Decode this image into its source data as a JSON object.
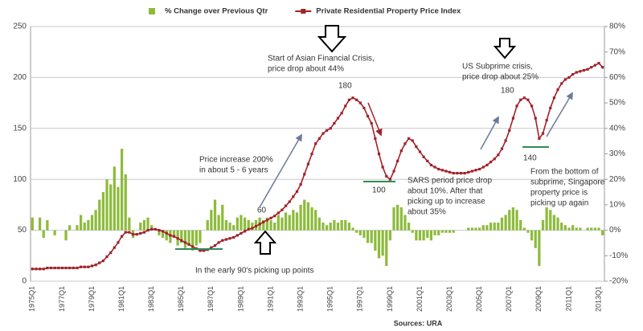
{
  "chart_data": {
    "type": "bar-line",
    "legend": {
      "position": "top"
    },
    "categories": [
      "1975Q1",
      null,
      null,
      null,
      null,
      null,
      null,
      null,
      "1977Q1",
      null,
      null,
      null,
      null,
      null,
      null,
      null,
      "1979Q1",
      null,
      null,
      null,
      null,
      null,
      null,
      null,
      "1981Q1",
      null,
      null,
      null,
      null,
      null,
      null,
      null,
      "1983Q1",
      null,
      null,
      null,
      null,
      null,
      null,
      null,
      "1985Q1",
      null,
      null,
      null,
      null,
      null,
      null,
      null,
      "1987Q1",
      null,
      null,
      null,
      null,
      null,
      null,
      null,
      "1989Q1",
      null,
      null,
      null,
      null,
      null,
      null,
      null,
      "1991Q1",
      null,
      null,
      null,
      null,
      null,
      null,
      null,
      "1993Q1",
      null,
      null,
      null,
      null,
      null,
      null,
      null,
      "1995Q1",
      null,
      null,
      null,
      null,
      null,
      null,
      null,
      "1997Q1",
      null,
      null,
      null,
      null,
      null,
      null,
      null,
      "1999Q1",
      null,
      null,
      null,
      null,
      null,
      null,
      null,
      "2001Q1",
      null,
      null,
      null,
      null,
      null,
      null,
      null,
      "2003Q1",
      null,
      null,
      null,
      null,
      null,
      null,
      null,
      "2005Q1",
      null,
      null,
      null,
      null,
      null,
      null,
      null,
      "2007Q1",
      null,
      null,
      null,
      null,
      null,
      null,
      null,
      "2009Q1",
      null,
      null,
      null,
      null,
      null,
      null,
      null,
      "2011Q1",
      null,
      null,
      null,
      null,
      null,
      null,
      null,
      "2013Q1",
      null
    ],
    "series": [
      {
        "name": "% Change over Previous Qtr",
        "type": "bar",
        "axis": "y2",
        "color": "#8dbb3c",
        "values": [
          5,
          0,
          5,
          -3,
          4,
          0,
          -2,
          0,
          0,
          -4,
          2,
          0,
          2,
          6,
          3,
          4,
          6,
          8,
          12,
          15,
          20,
          18,
          25,
          17,
          32,
          22,
          5,
          -3,
          0,
          3,
          4,
          5,
          2,
          0,
          -2,
          -3,
          -4,
          -5,
          -3,
          -6,
          -5,
          -7,
          -6,
          -8,
          -6,
          -5,
          0,
          4,
          8,
          12,
          6,
          10,
          4,
          3,
          2,
          5,
          6,
          5,
          4,
          3,
          4,
          5,
          4,
          5,
          4,
          3,
          6,
          5,
          7,
          6,
          8,
          7,
          10,
          12,
          11,
          9,
          8,
          5,
          3,
          2,
          3,
          4,
          3,
          4,
          4,
          3,
          1,
          -1,
          -2,
          -3,
          -5,
          -5,
          -8,
          -11,
          -10,
          -14,
          -4,
          9,
          10,
          9,
          6,
          3,
          -1,
          -4,
          -4,
          -4,
          -3,
          -4,
          -2,
          -2,
          -1,
          -1,
          -1,
          -1,
          0,
          0,
          0,
          1,
          1,
          1,
          1,
          2,
          2,
          3,
          3,
          3,
          5,
          6,
          8,
          9,
          8,
          4,
          1,
          -1,
          -4,
          -7,
          -14,
          4,
          9,
          8,
          6,
          5,
          3,
          2,
          1,
          2,
          1,
          1,
          0,
          1,
          1,
          1,
          1,
          -2
        ]
      },
      {
        "name": "Private Residential Property Price Index",
        "type": "line",
        "axis": "y",
        "color": "#a0232b",
        "values": [
          12,
          12,
          12,
          12,
          13,
          13,
          13,
          13,
          13,
          13,
          13,
          13,
          13,
          14,
          14,
          14,
          15,
          16,
          18,
          20,
          24,
          28,
          33,
          38,
          44,
          48,
          48,
          46,
          46,
          47,
          48,
          50,
          51,
          51,
          50,
          49,
          47,
          45,
          44,
          42,
          40,
          38,
          36,
          34,
          32,
          30,
          30,
          31,
          33,
          35,
          38,
          40,
          41,
          42,
          43,
          45,
          47,
          49,
          51,
          52,
          54,
          56,
          58,
          60,
          62,
          64,
          67,
          70,
          74,
          78,
          83,
          88,
          95,
          105,
          115,
          125,
          135,
          140,
          145,
          148,
          150,
          155,
          160,
          165,
          172,
          178,
          180,
          178,
          175,
          170,
          162,
          155,
          140,
          125,
          112,
          103,
          100,
          108,
          118,
          128,
          135,
          140,
          138,
          132,
          127,
          122,
          118,
          114,
          112,
          110,
          109,
          108,
          107,
          106,
          106,
          106,
          106,
          107,
          108,
          109,
          110,
          112,
          114,
          117,
          120,
          124,
          130,
          138,
          148,
          160,
          172,
          178,
          180,
          178,
          172,
          160,
          140,
          145,
          158,
          170,
          180,
          188,
          194,
          198,
          200,
          203,
          205,
          206,
          207,
          208,
          210,
          212,
          214,
          210
        ]
      }
    ],
    "ylim": [
      0,
      250
    ],
    "yticks": [
      0,
      50,
      100,
      150,
      200,
      250
    ],
    "y2lim": [
      -20,
      80
    ],
    "y2ticks": [
      {
        "value": -20,
        "label": "-20%"
      },
      {
        "value": -10,
        "label": "-10%"
      },
      {
        "value": 0,
        "label": "0%"
      },
      {
        "value": 10,
        "label": "10%"
      },
      {
        "value": 20,
        "label": "20%"
      },
      {
        "value": 30,
        "label": "30%"
      },
      {
        "value": 40,
        "label": "40%"
      },
      {
        "value": 50,
        "label": "50%"
      },
      {
        "value": 60,
        "label": "60%"
      },
      {
        "value": 70,
        "label": "70%"
      },
      {
        "value": 80,
        "label": "80%"
      }
    ],
    "grid": true,
    "annotations": [
      {
        "lines": [
          "Start of Asian Financial Crisis,",
          "price drop about 44%"
        ]
      },
      {
        "lines": [
          "US Subprime crisis,",
          "price drop about 25%"
        ]
      },
      {
        "lines": [
          "Price increase 200%",
          "in about 5 - 6 years"
        ]
      },
      {
        "lines": [
          "SARS period price drop",
          "about 10%. After that",
          "picking up to increase",
          "about 35%"
        ]
      },
      {
        "lines": [
          "From the bottom of",
          "subprime, Singapore",
          "property price is",
          "picking up again"
        ]
      },
      {
        "lines": [
          "In the early 90's picking up points"
        ]
      },
      {
        "lines": [
          "180"
        ]
      },
      {
        "lines": [
          "100"
        ]
      },
      {
        "lines": [
          "180"
        ]
      },
      {
        "lines": [
          "140"
        ]
      },
      {
        "lines": [
          "60"
        ]
      }
    ],
    "source": "Sources: URA"
  }
}
